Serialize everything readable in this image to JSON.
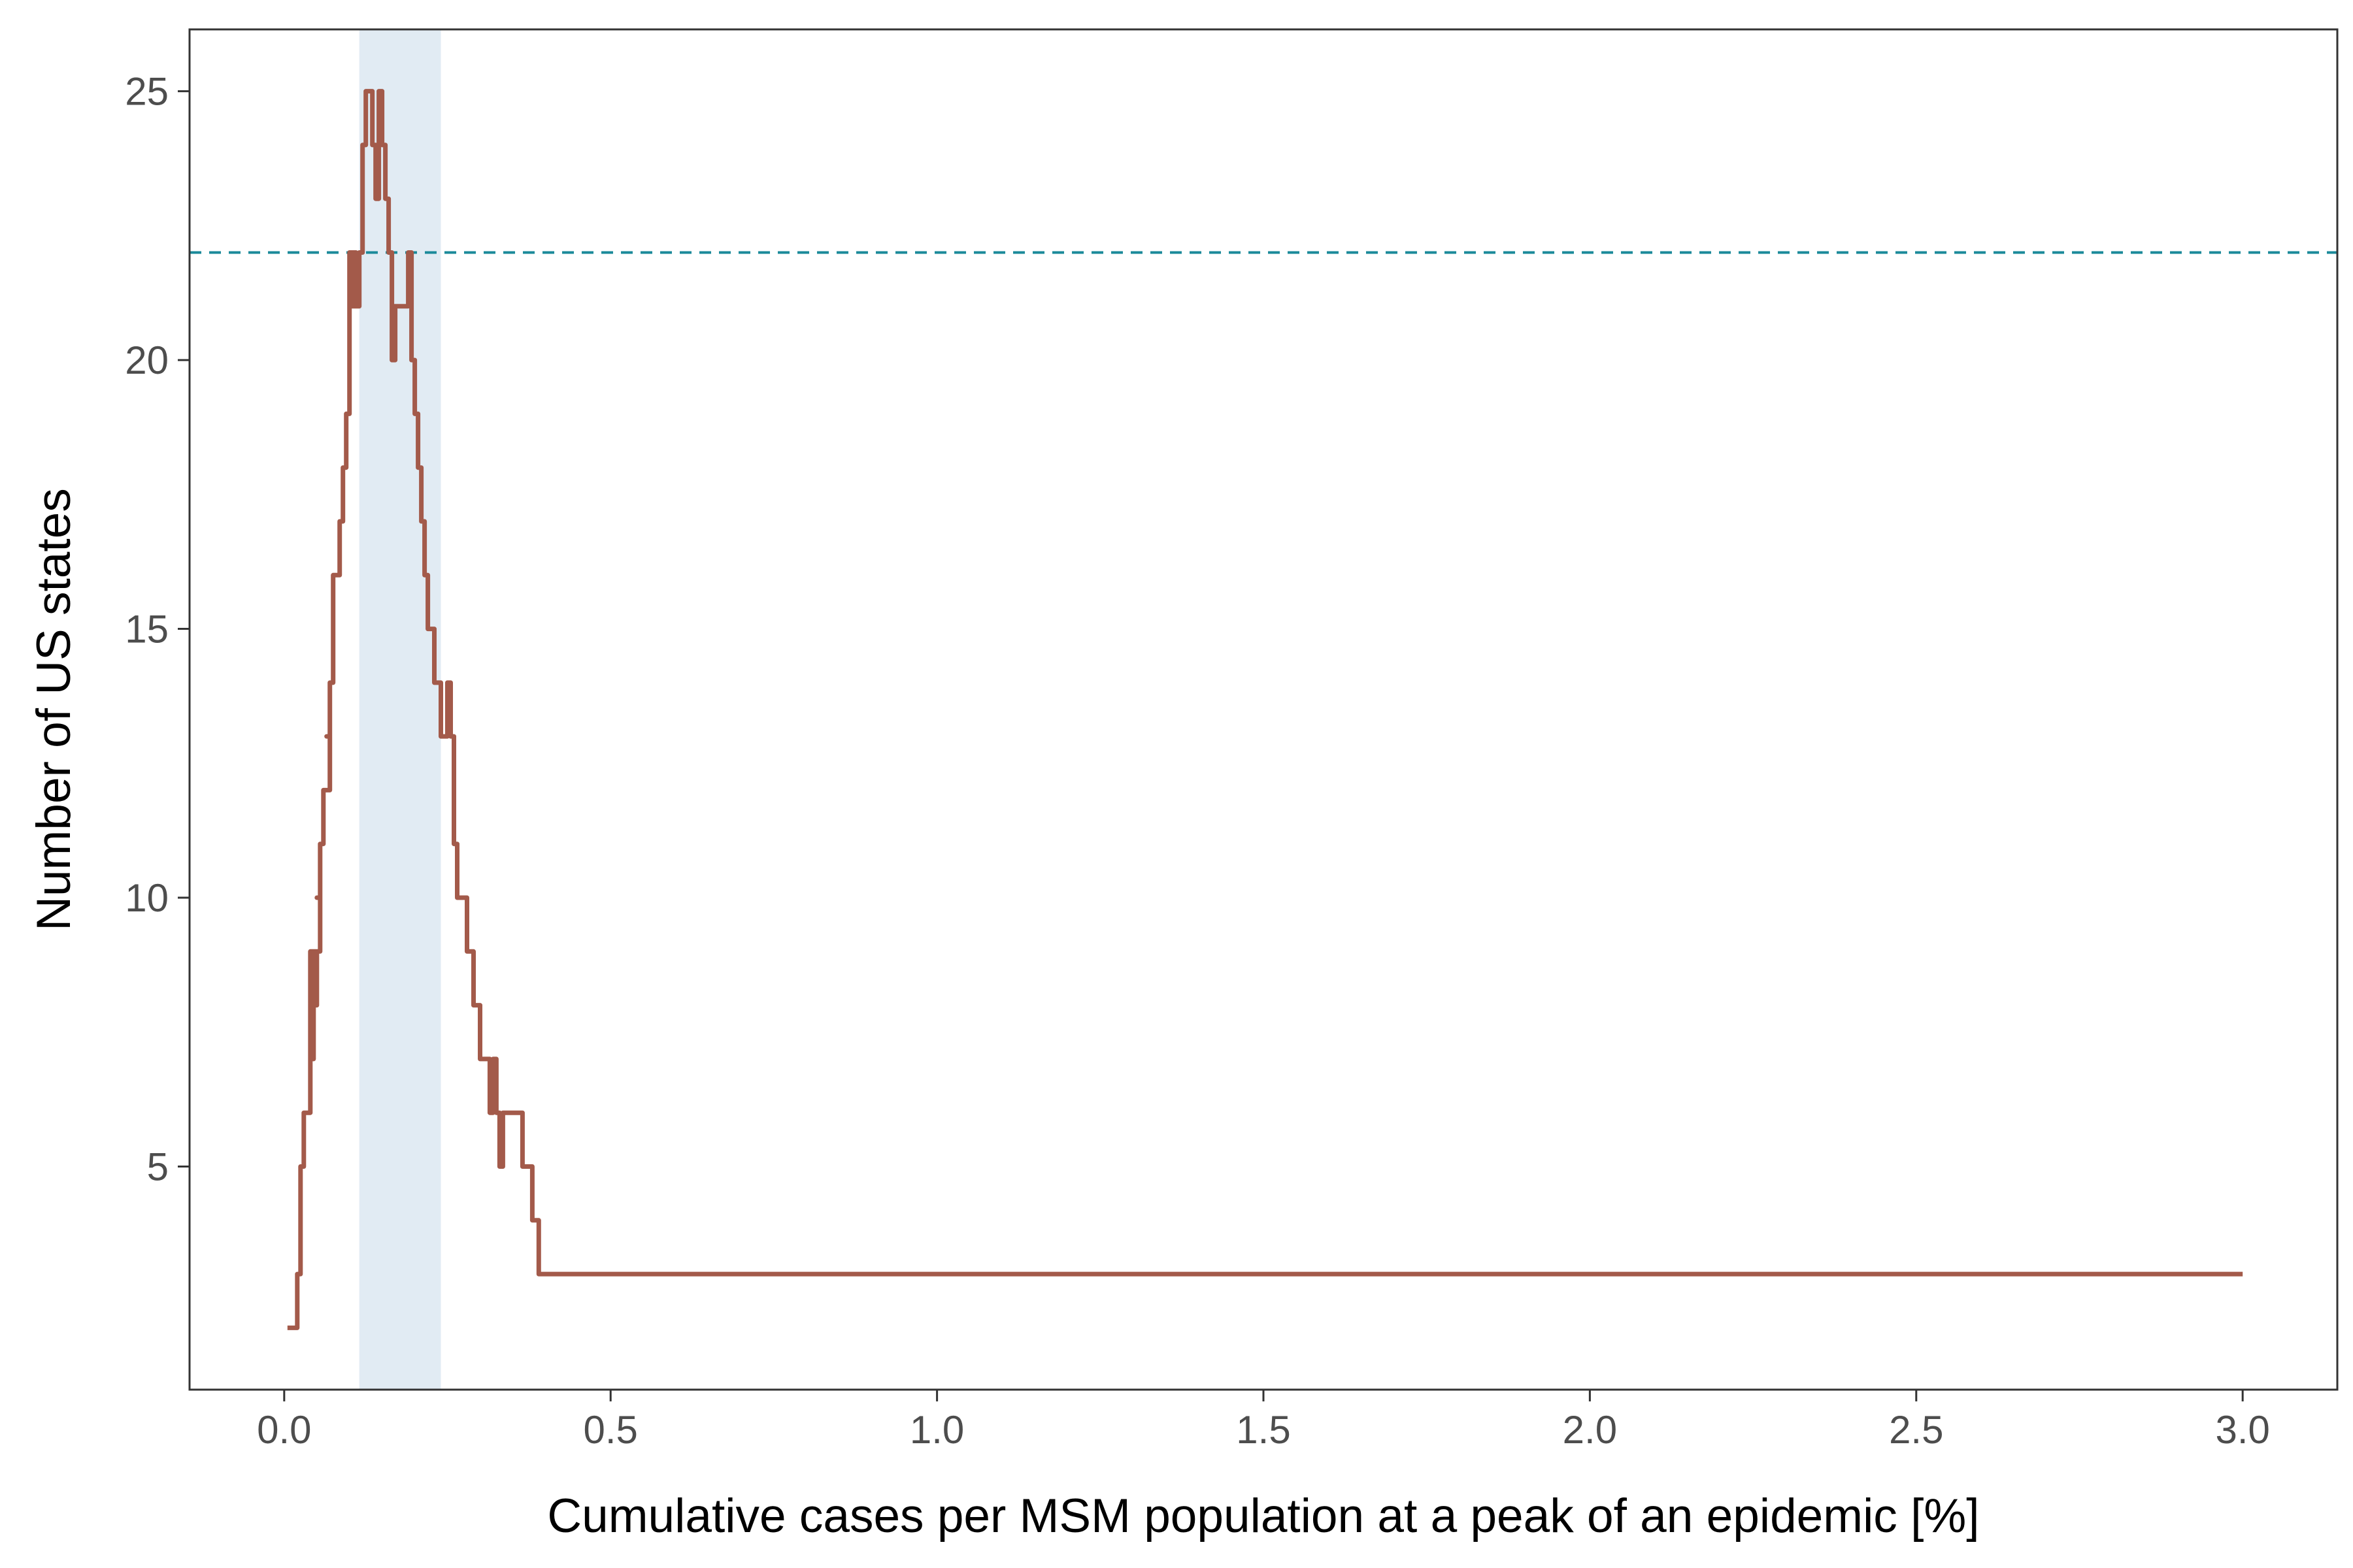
{
  "chart_data": {
    "type": "line",
    "title": "",
    "xlabel": "Cumulative cases per MSM population at a peak of an epidemic [%]",
    "ylabel": "Number of US states",
    "xlim": [
      -0.145,
      3.145
    ],
    "ylim": [
      0.85,
      26.15
    ],
    "x_ticks": [
      0.0,
      0.5,
      1.0,
      1.5,
      2.0,
      2.5,
      3.0
    ],
    "x_tick_labels": [
      "0.0",
      "0.5",
      "1.0",
      "1.5",
      "2.0",
      "2.5",
      "3.0"
    ],
    "y_ticks": [
      5,
      10,
      15,
      20,
      25
    ],
    "y_tick_labels": [
      "5",
      "10",
      "15",
      "20",
      "25"
    ],
    "grid": false,
    "step": "hv",
    "highlight_band": {
      "xmin": 0.115,
      "xmax": 0.24,
      "color": "#e1ebf3"
    },
    "reference_line": {
      "y": 22,
      "color": "#1a8a9a",
      "style": "dashed"
    },
    "series": [
      {
        "color": "#a35a4a",
        "x": [
          0.005,
          0.02,
          0.025,
          0.03,
          0.04,
          0.045,
          0.04,
          0.045,
          0.05,
          0.04,
          0.045,
          0.05,
          0.04,
          0.05,
          0.055,
          0.05,
          0.055,
          0.06,
          0.06,
          0.07,
          0.065,
          0.07,
          0.075,
          0.075,
          0.08,
          0.085,
          0.09,
          0.095,
          0.1,
          0.1,
          0.105,
          0.11,
          0.1,
          0.105,
          0.11,
          0.11,
          0.115,
          0.12,
          0.125,
          0.135,
          0.14,
          0.145,
          0.15,
          0.155,
          0.16,
          0.165,
          0.17,
          0.165,
          0.175,
          0.18,
          0.19,
          0.195,
          0.2,
          0.205,
          0.21,
          0.215,
          0.22,
          0.23,
          0.24,
          0.245,
          0.25,
          0.255,
          0.26,
          0.265,
          0.28,
          0.29,
          0.3,
          0.31,
          0.315,
          0.32,
          0.325,
          0.33,
          0.335,
          0.34,
          0.35,
          0.365,
          0.37,
          0.375,
          0.38,
          0.385,
          0.39,
          0.41,
          0.45,
          0.515,
          0.675,
          0.68,
          0.685,
          3.0
        ],
        "values": [
          2,
          3,
          5,
          6,
          7,
          8,
          7,
          8,
          9,
          8,
          9,
          9,
          8,
          9,
          10,
          10,
          11,
          12,
          12,
          13,
          13,
          14,
          15,
          16,
          16,
          17,
          18,
          19,
          20,
          21,
          21,
          22,
          21,
          22,
          22,
          21,
          22,
          24,
          25,
          24,
          23,
          25,
          24,
          23,
          22,
          21,
          20,
          21,
          21,
          21,
          22,
          20,
          19,
          18,
          17,
          16,
          15,
          14,
          13,
          13,
          14,
          13,
          11,
          10,
          9,
          8,
          7,
          7,
          6,
          7,
          6,
          5,
          6,
          6,
          6,
          5,
          5,
          5,
          4,
          4,
          3,
          3,
          3,
          3,
          3,
          3,
          3,
          3
        ]
      }
    ]
  }
}
